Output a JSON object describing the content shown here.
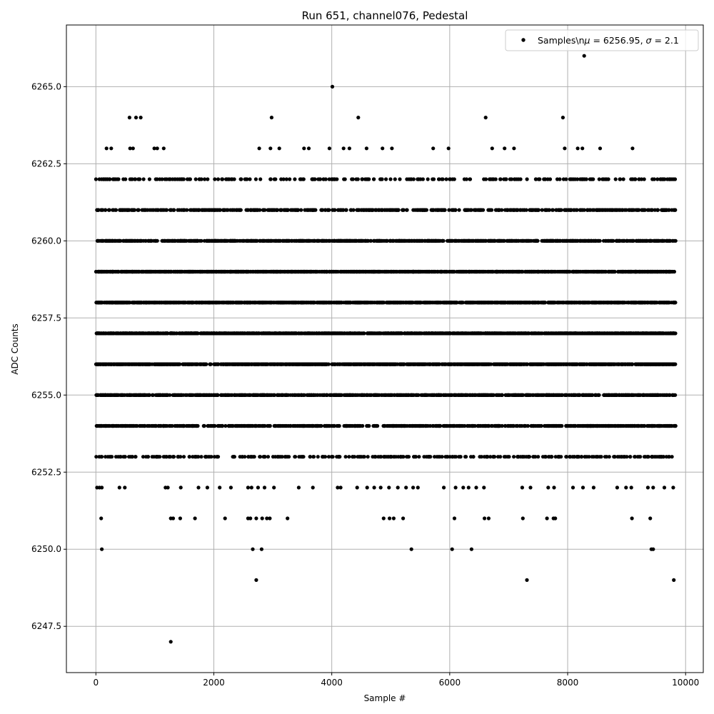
{
  "chart_data": {
    "type": "scatter",
    "title": "Run 651, channel076, Pedestal",
    "xlabel": "Sample #",
    "ylabel": "ADC Counts",
    "xlim": [
      -500,
      10300
    ],
    "ylim": [
      6246.0,
      6267.0
    ],
    "x_ticks": [
      0,
      2000,
      4000,
      6000,
      8000,
      10000
    ],
    "x_tick_labels": [
      "0",
      "2000",
      "4000",
      "6000",
      "8000",
      "10000"
    ],
    "y_ticks": [
      6247.5,
      6250.0,
      6252.5,
      6255.0,
      6257.5,
      6260.0,
      6262.5,
      6265.0
    ],
    "y_tick_labels": [
      "6247.5",
      "6250.0",
      "6252.5",
      "6255.0",
      "6257.5",
      "6260.0",
      "6262.5",
      "6265.0"
    ],
    "grid": true,
    "legend_position": "top-right",
    "marker_color": "#000000",
    "series": [
      {
        "name": "Samples\\nμ = 6256.95, σ = 2.1",
        "x_range": [
          0,
          9830
        ],
        "dense_levels": [
          6253,
          6254,
          6255,
          6256,
          6257,
          6258,
          6259,
          6260,
          6261,
          6262
        ],
        "points": [
          [
            1270,
            6247
          ],
          [
            2720,
            6249
          ],
          [
            7310,
            6249
          ],
          [
            9800,
            6249
          ],
          [
            100,
            6250
          ],
          [
            2660,
            6250
          ],
          [
            2810,
            6250
          ],
          [
            5350,
            6250
          ],
          [
            6040,
            6250
          ],
          [
            6370,
            6250
          ],
          [
            9420,
            6250
          ],
          [
            9450,
            6250
          ],
          [
            90,
            6251
          ],
          [
            1270,
            6251
          ],
          [
            1310,
            6251
          ],
          [
            1430,
            6251
          ],
          [
            1680,
            6251
          ],
          [
            2190,
            6251
          ],
          [
            2580,
            6251
          ],
          [
            2620,
            6251
          ],
          [
            2720,
            6251
          ],
          [
            2820,
            6251
          ],
          [
            2900,
            6251
          ],
          [
            2950,
            6251
          ],
          [
            3250,
            6251
          ],
          [
            4880,
            6251
          ],
          [
            4980,
            6251
          ],
          [
            5050,
            6251
          ],
          [
            5210,
            6251
          ],
          [
            6080,
            6251
          ],
          [
            6590,
            6251
          ],
          [
            6660,
            6251
          ],
          [
            7240,
            6251
          ],
          [
            7650,
            6251
          ],
          [
            7760,
            6251
          ],
          [
            7790,
            6251
          ],
          [
            9090,
            6251
          ],
          [
            9400,
            6251
          ],
          [
            20,
            6252
          ],
          [
            60,
            6252
          ],
          [
            100,
            6252
          ],
          [
            400,
            6252
          ],
          [
            490,
            6252
          ],
          [
            1180,
            6252
          ],
          [
            1220,
            6252
          ],
          [
            1440,
            6252
          ],
          [
            1740,
            6252
          ],
          [
            1890,
            6252
          ],
          [
            2100,
            6252
          ],
          [
            2290,
            6252
          ],
          [
            2580,
            6252
          ],
          [
            2640,
            6252
          ],
          [
            2750,
            6252
          ],
          [
            2860,
            6252
          ],
          [
            3020,
            6252
          ],
          [
            3440,
            6252
          ],
          [
            3680,
            6252
          ],
          [
            4100,
            6252
          ],
          [
            4150,
            6252
          ],
          [
            4430,
            6252
          ],
          [
            4600,
            6252
          ],
          [
            4720,
            6252
          ],
          [
            4830,
            6252
          ],
          [
            4970,
            6252
          ],
          [
            5120,
            6252
          ],
          [
            5260,
            6252
          ],
          [
            5380,
            6252
          ],
          [
            5460,
            6252
          ],
          [
            5900,
            6252
          ],
          [
            6100,
            6252
          ],
          [
            6230,
            6252
          ],
          [
            6320,
            6252
          ],
          [
            6450,
            6252
          ],
          [
            6580,
            6252
          ],
          [
            7230,
            6252
          ],
          [
            7370,
            6252
          ],
          [
            7670,
            6252
          ],
          [
            7770,
            6252
          ],
          [
            8090,
            6252
          ],
          [
            8260,
            6252
          ],
          [
            8440,
            6252
          ],
          [
            8840,
            6252
          ],
          [
            8990,
            6252
          ],
          [
            9080,
            6252
          ],
          [
            9360,
            6252
          ],
          [
            9450,
            6252
          ],
          [
            9640,
            6252
          ],
          [
            9790,
            6252
          ],
          [
            180,
            6263
          ],
          [
            260,
            6263
          ],
          [
            580,
            6263
          ],
          [
            630,
            6263
          ],
          [
            990,
            6263
          ],
          [
            1040,
            6263
          ],
          [
            1150,
            6263
          ],
          [
            2770,
            6263
          ],
          [
            2960,
            6263
          ],
          [
            3110,
            6263
          ],
          [
            3530,
            6263
          ],
          [
            3610,
            6263
          ],
          [
            3960,
            6263
          ],
          [
            4200,
            6263
          ],
          [
            4300,
            6263
          ],
          [
            4590,
            6263
          ],
          [
            4860,
            6263
          ],
          [
            5020,
            6263
          ],
          [
            5720,
            6263
          ],
          [
            5980,
            6263
          ],
          [
            6720,
            6263
          ],
          [
            6930,
            6263
          ],
          [
            7090,
            6263
          ],
          [
            7950,
            6263
          ],
          [
            8170,
            6263
          ],
          [
            8250,
            6263
          ],
          [
            8550,
            6263
          ],
          [
            9100,
            6263
          ],
          [
            570,
            6264
          ],
          [
            680,
            6264
          ],
          [
            760,
            6264
          ],
          [
            2980,
            6264
          ],
          [
            4450,
            6264
          ],
          [
            6610,
            6264
          ],
          [
            7920,
            6264
          ],
          [
            4010,
            6265
          ],
          [
            8280,
            6266
          ]
        ]
      }
    ]
  }
}
